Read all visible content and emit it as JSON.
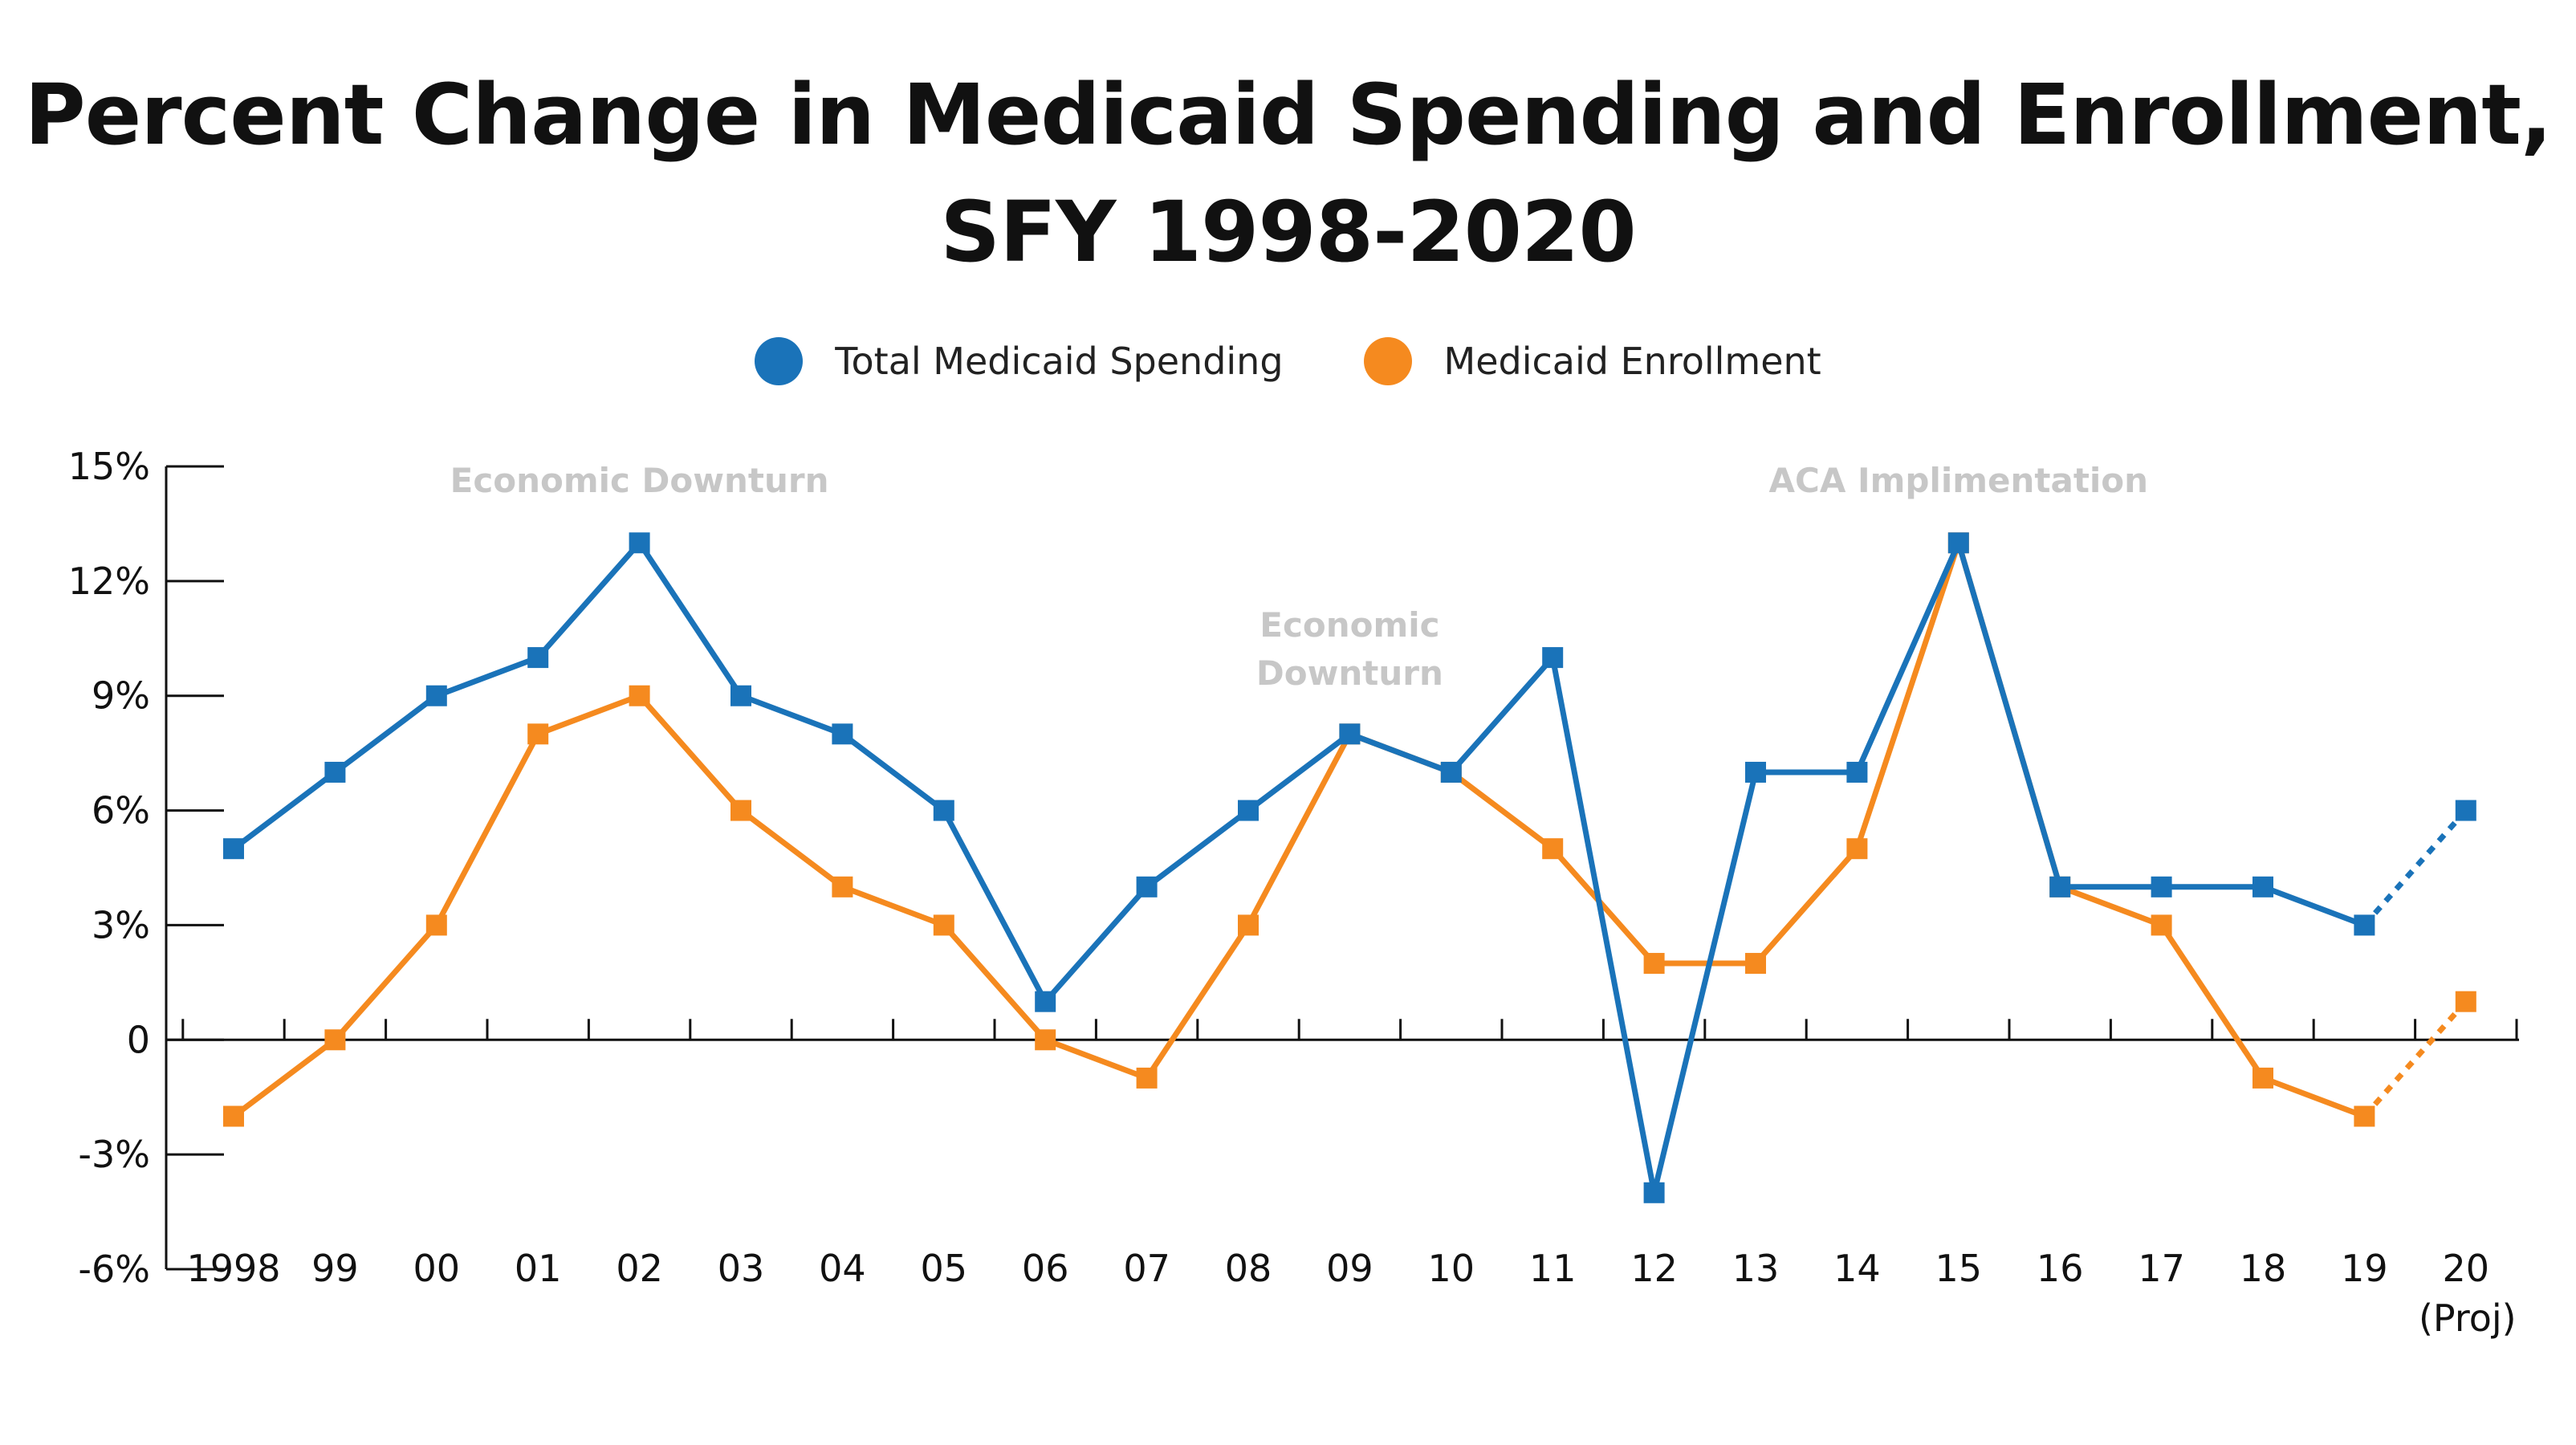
{
  "title": {
    "line1": "Percent Change in Medicaid Spending and Enrollment,",
    "line2": "SFY 1998-2020"
  },
  "legend": [
    {
      "label": "Total Medicaid Spending",
      "color": "#1a73b9"
    },
    {
      "label": "Medicaid Enrollment",
      "color": "#f58a1f"
    }
  ],
  "annotations": [
    {
      "lines": [
        "Economic Downturn"
      ],
      "x_label": "02"
    },
    {
      "lines": [
        "Economic",
        "Downturn"
      ],
      "x_label": "09"
    },
    {
      "lines": [
        "ACA Implimentation"
      ],
      "x_label": "15"
    }
  ],
  "chart_data": {
    "type": "line",
    "title": "Percent Change in Medicaid Spending and Enrollment, SFY 1998-2020",
    "categories": [
      "1998",
      "99",
      "00",
      "01",
      "02",
      "03",
      "04",
      "05",
      "06",
      "07",
      "08",
      "09",
      "10",
      "11",
      "12",
      "13",
      "14",
      "15",
      "16",
      "17",
      "18",
      "19",
      "20"
    ],
    "category_sublabels": {
      "20": "(Proj)"
    },
    "y_ticks": [
      15,
      12,
      9,
      6,
      3,
      0,
      -3,
      -6
    ],
    "y_tick_labels": [
      "15%",
      "12%",
      "9%",
      "6%",
      "3%",
      "0",
      "-3%",
      "-6%"
    ],
    "ylim": [
      -6,
      15
    ],
    "projected_from_index": 21,
    "series": [
      {
        "name": "Total Medicaid Spending",
        "color": "#1a73b9",
        "values": [
          5,
          7,
          9,
          10,
          13,
          9,
          8,
          6,
          1,
          4,
          6,
          8,
          7,
          10,
          -4,
          7,
          7,
          13,
          4,
          4,
          4,
          3,
          6
        ]
      },
      {
        "name": "Medicaid Enrollment",
        "color": "#f58a1f",
        "values": [
          -2,
          0,
          3,
          8,
          9,
          6,
          4,
          3,
          0,
          -1,
          3,
          8,
          7,
          5,
          2,
          2,
          5,
          13,
          4,
          3,
          -1,
          -2,
          1
        ]
      }
    ]
  }
}
